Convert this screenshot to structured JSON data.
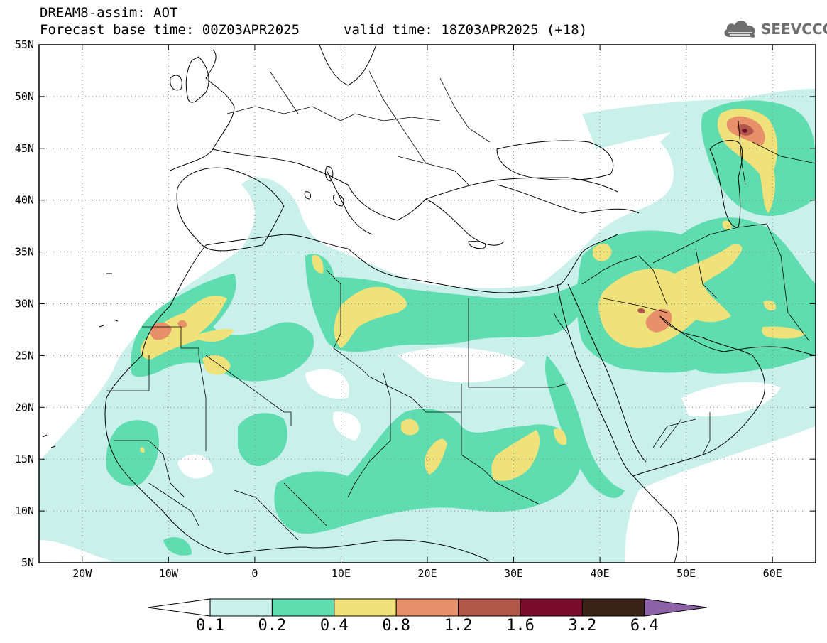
{
  "header": {
    "title_line1": "DREAM8-assim: AOT",
    "title_line2": "Forecast base time: 00Z03APR2025",
    "valid_time": "valid time: 18Z03APR2025 (+18)",
    "logo_text": "SEEVCCC",
    "logo_icon": "cloud-icon"
  },
  "map": {
    "lat_labels": [
      "55N",
      "50N",
      "45N",
      "40N",
      "35N",
      "30N",
      "25N",
      "20N",
      "15N",
      "10N",
      "5N"
    ],
    "lon_labels": [
      "20W",
      "10W",
      "0",
      "10E",
      "20E",
      "30E",
      "40E",
      "50E",
      "60E"
    ],
    "lat_range": [
      5,
      55
    ],
    "lon_range": [
      -25,
      65
    ],
    "grid": "dotted",
    "variable": "AOT"
  },
  "colorbar": {
    "labels": [
      "0.1",
      "0.2",
      "0.4",
      "0.8",
      "1.2",
      "1.6",
      "3.2",
      "6.4"
    ],
    "colors": [
      "#c9f0ea",
      "#5fdcb0",
      "#f0e27a",
      "#e8906a",
      "#b0584a",
      "#7a0c2c",
      "#3a2418",
      "#8e62a8"
    ],
    "under_color": "#ffffff",
    "over_color": "#8e62a8"
  }
}
